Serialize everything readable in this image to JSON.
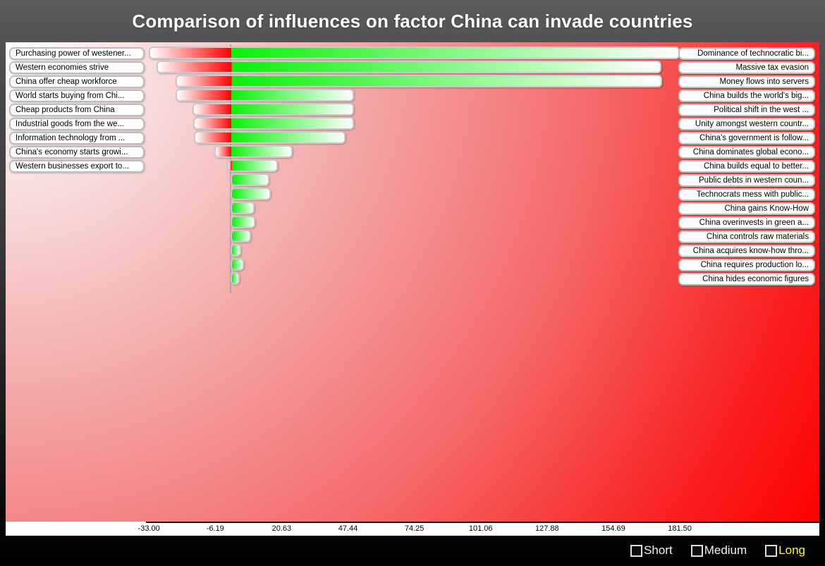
{
  "title": "Comparison of influences on factor China can invade countries",
  "chart_data": {
    "type": "bar",
    "subtype": "diverging-horizontal-tornado",
    "title": "Comparison of influences on factor China can invade countries",
    "axis_tick_labels": [
      "-33.00",
      "-6.19",
      "20.63",
      "47.44",
      "74.25",
      "101.06",
      "127.88",
      "154.69",
      "181.50"
    ],
    "axis_tick_values": [
      -33.0,
      -6.19,
      20.63,
      47.44,
      74.25,
      101.06,
      127.88,
      154.69,
      181.5
    ],
    "axis_range": [
      -33.0,
      181.5
    ],
    "colors": {
      "negative_bar": "#ff0000",
      "positive_bar": "#0af00a",
      "bar_tip": "#ffffff",
      "plot_gradient_start": "#ffffff",
      "plot_gradient_end": "#ff0000"
    },
    "rows": [
      {
        "left_label": "Purchasing power of westener...",
        "right_label": "Dominance of technocratic bi...",
        "negative": -33.0,
        "positive": 181.5
      },
      {
        "left_label": "Western economies strive",
        "right_label": "Massive tax evasion",
        "negative": -30.0,
        "positive": 174.0
      },
      {
        "left_label": "China offer cheap workforce",
        "right_label": "Money flows into servers",
        "negative": -22.3,
        "positive": 174.5
      },
      {
        "left_label": "World starts buying from Chi...",
        "right_label": "China builds the world's big...",
        "negative": -22.3,
        "positive": 50.0
      },
      {
        "left_label": "Cheap products from China",
        "right_label": "Political shift in the west ...",
        "negative": -15.5,
        "positive": 50.0
      },
      {
        "left_label": "Industrial goods from the we...",
        "right_label": "Unity amongst western countr...",
        "negative": -15.2,
        "positive": 50.0
      },
      {
        "left_label": "Information technology from ...",
        "right_label": "China's government is follow...",
        "negative": -14.8,
        "positive": 46.5
      },
      {
        "left_label": "China's economy starts growi...",
        "right_label": "China dominates global econo...",
        "negative": -6.5,
        "positive": 25.0
      },
      {
        "left_label": "Western businesses export to...",
        "right_label": "China builds equal to better...",
        "negative": -1.5,
        "positive": 19.0
      },
      {
        "left_label": null,
        "right_label": "Public debts in western coun...",
        "negative": 0,
        "positive": 15.8
      },
      {
        "left_label": null,
        "right_label": "Technocrats mess with public...",
        "negative": 0,
        "positive": 16.3
      },
      {
        "left_label": null,
        "right_label": "China gains Know-How",
        "negative": 0,
        "positive": 9.6
      },
      {
        "left_label": null,
        "right_label": "China overinvests in green a...",
        "negative": 0,
        "positive": 10.1
      },
      {
        "left_label": null,
        "right_label": "China controls raw materials",
        "negative": 0,
        "positive": 8.4
      },
      {
        "left_label": null,
        "right_label": "China acquires know-how thro...",
        "negative": 0,
        "positive": 4.4
      },
      {
        "left_label": null,
        "right_label": "China requires production lo...",
        "negative": 0,
        "positive": 5.4
      },
      {
        "left_label": null,
        "right_label": "China hides economic figures",
        "negative": 0,
        "positive": 3.7
      }
    ]
  },
  "legend": {
    "items": [
      {
        "label": "Short",
        "color": "#f2f2f2",
        "checked": false
      },
      {
        "label": "Medium",
        "color": "#f2f2f2",
        "checked": false
      },
      {
        "label": "Long",
        "color": "#ffff00",
        "checked": false
      }
    ]
  }
}
